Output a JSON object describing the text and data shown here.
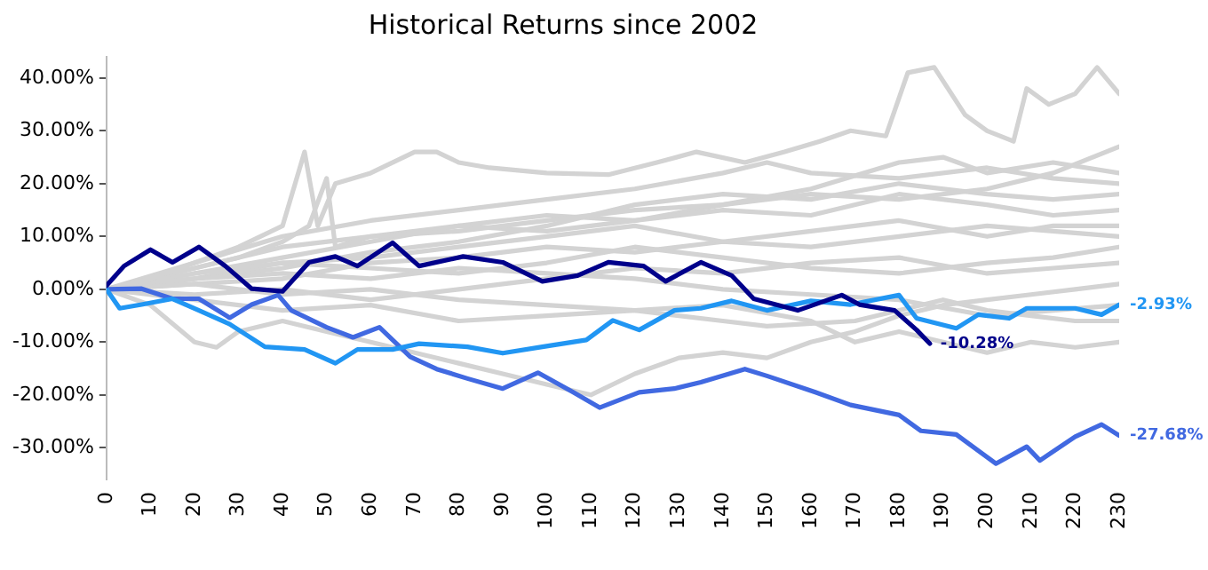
{
  "chart_data": {
    "type": "line",
    "title": "Historical Returns since 2002",
    "xlim": [
      0,
      230
    ],
    "xticks": [
      0,
      10,
      20,
      30,
      40,
      50,
      60,
      70,
      80,
      90,
      100,
      110,
      120,
      130,
      140,
      150,
      160,
      170,
      180,
      190,
      200,
      210,
      220,
      230
    ],
    "ylim": [
      -36,
      44
    ],
    "yticks": [
      {
        "value": 40,
        "label": "40.00%"
      },
      {
        "value": 30,
        "label": "30.00%"
      },
      {
        "value": 20,
        "label": "20.00%"
      },
      {
        "value": 10,
        "label": "10.00%"
      },
      {
        "value": 0,
        "label": "0.00%"
      },
      {
        "value": -10,
        "label": "-10.00%"
      },
      {
        "value": -20,
        "label": "-20.00%"
      },
      {
        "value": -30,
        "label": "-30.00%"
      }
    ],
    "grid": false,
    "legend": false,
    "marker": "none",
    "line_style": "solid",
    "series": [
      {
        "color": "#00008b",
        "x": [
          0,
          4,
          10,
          15,
          21,
          27,
          33,
          40,
          46,
          52,
          57,
          65,
          71,
          81,
          90,
          99,
          107,
          114,
          122,
          127,
          135,
          142,
          147,
          157,
          167,
          171,
          179,
          184,
          187
        ],
        "values": [
          0.7,
          4.4,
          7.5,
          5.1,
          8,
          4.4,
          0.1,
          -0.4,
          5.1,
          6.2,
          4.4,
          8.8,
          4.4,
          6.2,
          5.1,
          1.5,
          2.6,
          5.1,
          4.4,
          1.5,
          5.1,
          2.6,
          -1.8,
          -4,
          -1.1,
          -2.9,
          -4,
          -7.7,
          -10.28
        ],
        "value_labels": [
          null,
          null,
          null,
          null,
          null,
          null,
          null,
          null,
          null,
          null,
          null,
          null,
          null,
          null,
          null,
          null,
          null,
          null,
          null,
          null,
          null,
          null,
          null,
          null,
          null,
          null,
          null,
          null,
          "-10.28%"
        ]
      },
      {
        "color": "#2196f3",
        "x": [
          0,
          3,
          8,
          15,
          21,
          28,
          36,
          45,
          52,
          57,
          65,
          71,
          82,
          90,
          99,
          109,
          115,
          121,
          129,
          135,
          142,
          150,
          160,
          169,
          180,
          184,
          193,
          198,
          205,
          209,
          220,
          226,
          230
        ],
        "values": [
          0,
          -3.6,
          -2.9,
          -1.8,
          -4,
          -6.6,
          -10.9,
          -11.4,
          -14,
          -11.4,
          -11.4,
          -10.3,
          -10.9,
          -12.1,
          -10.9,
          -9.6,
          -5.9,
          -7.7,
          -4,
          -3.6,
          -2.2,
          -4,
          -2.2,
          -2.9,
          -1.1,
          -5.5,
          -7.4,
          -4.8,
          -5.5,
          -3.6,
          -3.6,
          -4.8,
          -2.93
        ],
        "value_labels": [
          null,
          null,
          null,
          null,
          null,
          null,
          null,
          null,
          null,
          null,
          null,
          null,
          null,
          null,
          null,
          null,
          null,
          null,
          null,
          null,
          null,
          null,
          null,
          null,
          null,
          null,
          null,
          null,
          null,
          null,
          null,
          null,
          "-2.93%"
        ]
      },
      {
        "color": "#4169e1",
        "x": [
          0,
          8,
          15,
          21,
          28,
          33,
          39,
          42,
          50,
          56,
          62,
          69,
          75,
          82,
          90,
          98,
          106,
          112,
          121,
          129,
          135,
          145,
          150,
          161,
          169,
          180,
          185,
          193,
          202,
          209,
          212,
          220,
          226,
          230
        ],
        "values": [
          0,
          0.1,
          -1.8,
          -1.8,
          -5.4,
          -2.9,
          -1.1,
          -4,
          -7.2,
          -9.1,
          -7.2,
          -12.8,
          -15.1,
          -16.9,
          -18.8,
          -15.8,
          -19.5,
          -22.4,
          -19.5,
          -18.8,
          -17.6,
          -15.1,
          -16.4,
          -19.5,
          -21.9,
          -23.8,
          -26.8,
          -27.5,
          -33,
          -29.8,
          -32.4,
          -27.9,
          -25.6,
          -27.68
        ],
        "value_labels": [
          null,
          null,
          null,
          null,
          null,
          null,
          null,
          null,
          null,
          null,
          null,
          null,
          null,
          null,
          null,
          null,
          null,
          null,
          null,
          null,
          null,
          null,
          null,
          null,
          null,
          null,
          null,
          null,
          null,
          null,
          null,
          null,
          null,
          "-27.68%"
        ]
      },
      {
        "color": "#d3d3d3",
        "x": [
          0,
          10,
          20,
          30,
          40,
          45,
          48,
          52,
          60,
          70,
          75,
          80,
          87,
          100,
          114,
          125,
          134,
          145,
          154,
          162,
          169,
          177,
          182,
          188,
          195,
          200,
          206,
          209,
          214,
          220,
          225,
          230
        ],
        "values": [
          0,
          2,
          5,
          8,
          12,
          26,
          12,
          20,
          22,
          26,
          26,
          24,
          23,
          22,
          21.7,
          24,
          26,
          24,
          26,
          28,
          30,
          29,
          41,
          42,
          33,
          30,
          28,
          38,
          35,
          37,
          42,
          37
        ]
      },
      {
        "color": "#d3d3d3",
        "x": [
          0,
          15,
          30,
          40,
          46,
          50,
          52,
          60,
          80,
          100,
          120,
          140,
          160,
          180,
          200,
          215,
          230
        ],
        "values": [
          0,
          3,
          6,
          9,
          12,
          21,
          8,
          10,
          11,
          13,
          15,
          16,
          18,
          17,
          19,
          22,
          27
        ]
      },
      {
        "color": "#d3d3d3",
        "x": [
          0,
          10,
          20,
          25,
          30,
          40,
          50,
          60,
          70,
          80,
          90,
          100,
          110,
          120,
          130,
          140,
          150,
          160,
          170,
          180,
          190,
          200,
          210,
          220,
          230
        ],
        "values": [
          0,
          -3,
          -10,
          -11,
          -8,
          -6,
          -8,
          -10,
          -12,
          -14,
          -16,
          -18,
          -20,
          -16,
          -13,
          -12,
          -13,
          -10,
          -8,
          -5,
          -3,
          -2,
          -1,
          0,
          1
        ]
      },
      {
        "color": "#d3d3d3",
        "x": [
          0,
          20,
          40,
          60,
          80,
          100,
          120,
          140,
          160,
          170,
          180,
          190,
          200,
          210,
          220,
          230
        ],
        "values": [
          0,
          -2,
          -4,
          -3,
          -6,
          -5,
          -4,
          -3,
          -6,
          -10,
          -8,
          -10,
          -12,
          -10,
          -11,
          -10
        ]
      },
      {
        "color": "#d3d3d3",
        "x": [
          0,
          20,
          40,
          60,
          80,
          100,
          120,
          140,
          150,
          170,
          190,
          200,
          210,
          220,
          230
        ],
        "values": [
          0,
          1,
          -1,
          0,
          -2,
          -3,
          -4,
          -6,
          -7,
          -6,
          -2,
          -4,
          -5,
          -6,
          -6
        ]
      },
      {
        "color": "#d3d3d3",
        "x": [
          0,
          20,
          40,
          60,
          80,
          100,
          120,
          140,
          160,
          180,
          200,
          215,
          230
        ],
        "values": [
          0,
          2,
          3,
          2,
          4,
          3,
          2,
          0,
          -1,
          -2,
          -5,
          -4,
          -3
        ]
      },
      {
        "color": "#d3d3d3",
        "x": [
          0,
          20,
          40,
          60,
          80,
          100,
          120,
          140,
          160,
          180,
          200,
          215,
          230
        ],
        "values": [
          0,
          3,
          5,
          4,
          3,
          5,
          8,
          6,
          4,
          3,
          5,
          6,
          8
        ]
      },
      {
        "color": "#d3d3d3",
        "x": [
          0,
          20,
          40,
          60,
          80,
          100,
          120,
          140,
          160,
          180,
          200,
          215,
          230
        ],
        "values": [
          0,
          2,
          5,
          6,
          8,
          10,
          12,
          9,
          11,
          13,
          10,
          12,
          12
        ]
      },
      {
        "color": "#d3d3d3",
        "x": [
          0,
          20,
          40,
          60,
          80,
          100,
          120,
          140,
          160,
          180,
          200,
          215,
          230
        ],
        "values": [
          0,
          4,
          8,
          10,
          12,
          11,
          13,
          15,
          14,
          18,
          16,
          14,
          15
        ]
      },
      {
        "color": "#d3d3d3",
        "x": [
          0,
          20,
          40,
          60,
          80,
          100,
          120,
          140,
          160,
          180,
          200,
          215,
          230
        ],
        "values": [
          0,
          2,
          4,
          7,
          9,
          12,
          16,
          18,
          17,
          20,
          18,
          17,
          18
        ]
      },
      {
        "color": "#d3d3d3",
        "x": [
          0,
          20,
          40,
          60,
          80,
          100,
          120,
          140,
          150,
          160,
          180,
          200,
          215,
          230
        ],
        "values": [
          0,
          5,
          10,
          13,
          15,
          17,
          19,
          22,
          24,
          22,
          21,
          23,
          21,
          20
        ]
      },
      {
        "color": "#d3d3d3",
        "x": [
          0,
          20,
          40,
          60,
          80,
          100,
          120,
          140,
          160,
          180,
          190,
          200,
          215,
          230
        ],
        "values": [
          0,
          3,
          6,
          9,
          12,
          14,
          13,
          16,
          19,
          24,
          25,
          22,
          24,
          22
        ]
      },
      {
        "color": "#d3d3d3",
        "x": [
          0,
          20,
          40,
          60,
          80,
          100,
          120,
          140,
          160,
          180,
          200,
          215,
          230
        ],
        "values": [
          0,
          1,
          2,
          5,
          6,
          8,
          7,
          9,
          8,
          10,
          12,
          11,
          10
        ]
      },
      {
        "color": "#d3d3d3",
        "x": [
          0,
          20,
          40,
          60,
          80,
          100,
          120,
          140,
          160,
          180,
          200,
          215,
          230
        ],
        "values": [
          0,
          -1,
          0,
          -2,
          0,
          2,
          4,
          3,
          5,
          6,
          3,
          4,
          5
        ]
      }
    ]
  }
}
